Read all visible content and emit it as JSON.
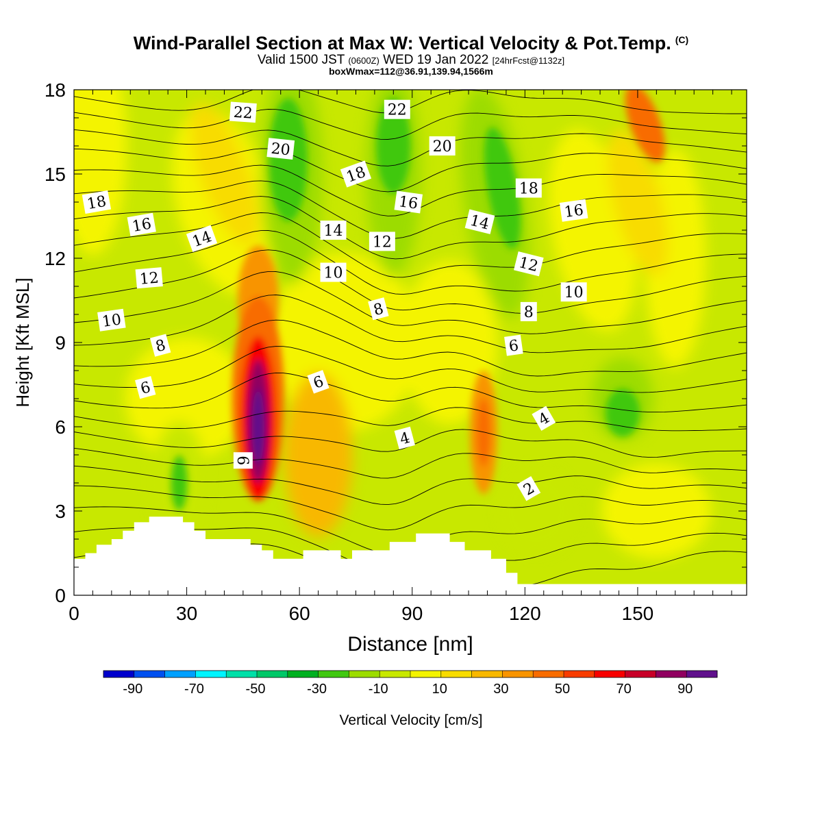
{
  "title": "Wind-Parallel Section at Max W: Vertical Velocity & Pot.Temp.",
  "copyright": "(C)",
  "subtitle_main": "Valid 1500 JST",
  "subtitle_utc": "(0600Z)",
  "subtitle_date": "WED 19 Jan 2022",
  "subtitle_fcst": "[24hrFcst@1132z]",
  "box_info": "boxWmax=112@36.91,139.94,1566m",
  "chart_data": {
    "type": "heatmap",
    "xlabel": "Distance [nm]",
    "ylabel": "Height [Kft MSL]",
    "xlim": [
      0,
      179
    ],
    "ylim": [
      0,
      18
    ],
    "x_ticks": [
      0,
      30,
      60,
      90,
      120,
      150
    ],
    "y_ticks": [
      0,
      3,
      6,
      9,
      12,
      15,
      18
    ],
    "colorbar": {
      "label": "Vertical Velocity [cm/s]",
      "bounds": [
        -100,
        -90,
        -80,
        -70,
        -60,
        -50,
        -40,
        -30,
        -20,
        -10,
        0,
        10,
        20,
        30,
        40,
        50,
        60,
        70,
        80,
        90,
        100
      ],
      "tick_labels": [
        -90,
        -70,
        -50,
        -30,
        -10,
        10,
        30,
        50,
        70,
        90
      ],
      "colors": [
        "#0000cc",
        "#0050f0",
        "#00a0ff",
        "#00f5ff",
        "#00e0a8",
        "#00c868",
        "#00b020",
        "#40c810",
        "#9cdc00",
        "#c8e800",
        "#f4f400",
        "#f8dc00",
        "#f8b800",
        "#f89400",
        "#f86c00",
        "#f83c00",
        "#f80000",
        "#c80028",
        "#900060",
        "#60108c"
      ]
    },
    "terrain": [
      [
        0,
        1.3
      ],
      [
        3,
        1.3
      ],
      [
        3,
        1.5
      ],
      [
        6,
        1.5
      ],
      [
        6,
        1.8
      ],
      [
        10,
        1.8
      ],
      [
        10,
        2.0
      ],
      [
        13,
        2.0
      ],
      [
        13,
        2.3
      ],
      [
        16,
        2.3
      ],
      [
        16,
        2.6
      ],
      [
        20,
        2.6
      ],
      [
        20,
        2.8
      ],
      [
        29,
        2.8
      ],
      [
        29,
        2.6
      ],
      [
        32,
        2.6
      ],
      [
        32,
        2.3
      ],
      [
        35,
        2.3
      ],
      [
        35,
        2.0
      ],
      [
        47,
        2.0
      ],
      [
        47,
        1.8
      ],
      [
        50,
        1.8
      ],
      [
        50,
        1.6
      ],
      [
        53,
        1.6
      ],
      [
        53,
        1.3
      ],
      [
        61,
        1.3
      ],
      [
        61,
        1.6
      ],
      [
        71,
        1.6
      ],
      [
        71,
        1.3
      ],
      [
        74,
        1.3
      ],
      [
        74,
        1.6
      ],
      [
        84,
        1.6
      ],
      [
        84,
        1.9
      ],
      [
        91,
        1.9
      ],
      [
        91,
        2.2
      ],
      [
        100,
        2.2
      ],
      [
        100,
        1.9
      ],
      [
        104,
        1.9
      ],
      [
        104,
        1.6
      ],
      [
        111,
        1.6
      ],
      [
        111,
        1.3
      ],
      [
        115,
        1.3
      ],
      [
        115,
        0.8
      ],
      [
        118,
        0.8
      ],
      [
        118,
        0.4
      ],
      [
        179,
        0.4
      ]
    ],
    "velocity_features": [
      {
        "label": "main updraft",
        "x": 49,
        "y": 6.0,
        "peak_cm_s": 112
      },
      {
        "label": "upper-left updraft",
        "x": 48,
        "y": 11,
        "peak_cm_s": 35
      },
      {
        "label": "secondary updraft",
        "x": 109,
        "y": 5.8,
        "peak_cm_s": 45
      },
      {
        "label": "upper-right updraft",
        "x": 152,
        "y": 16.5,
        "peak_cm_s": 45
      },
      {
        "label": "downdraft column",
        "x": 57,
        "y": 15.5,
        "peak_cm_s": -25
      },
      {
        "label": "downdraft column",
        "x": 85,
        "y": 15.5,
        "peak_cm_s": -25
      },
      {
        "label": "downdraft column",
        "x": 115,
        "y": 14.5,
        "peak_cm_s": -20
      },
      {
        "label": "downdraft near 145",
        "x": 146,
        "y": 7.0,
        "peak_cm_s": -20
      }
    ],
    "pot_temp_contours": {
      "levels": [
        1,
        2,
        3,
        4,
        5,
        6,
        7,
        8,
        9,
        10,
        11,
        12,
        13,
        14,
        15,
        16,
        17,
        18,
        19,
        20,
        21,
        22,
        23
      ],
      "labels": [
        {
          "text": "22",
          "x": 45,
          "y": 17.2,
          "rot": 4
        },
        {
          "text": "22",
          "x": 86,
          "y": 17.3,
          "rot": 0
        },
        {
          "text": "20",
          "x": 55,
          "y": 15.9,
          "rot": 6
        },
        {
          "text": "20",
          "x": 98,
          "y": 16.0,
          "rot": 0
        },
        {
          "text": "18",
          "x": 75,
          "y": 15.0,
          "rot": -20
        },
        {
          "text": "18",
          "x": 121,
          "y": 14.5,
          "rot": 0
        },
        {
          "text": "18",
          "x": 6,
          "y": 14.0,
          "rot": -10
        },
        {
          "text": "16",
          "x": 18,
          "y": 13.2,
          "rot": -10
        },
        {
          "text": "16",
          "x": 89,
          "y": 14.0,
          "rot": 8
        },
        {
          "text": "16",
          "x": 133,
          "y": 13.7,
          "rot": -8
        },
        {
          "text": "14",
          "x": 34,
          "y": 12.7,
          "rot": -20
        },
        {
          "text": "14",
          "x": 69,
          "y": 13.0,
          "rot": 0
        },
        {
          "text": "14",
          "x": 108,
          "y": 13.3,
          "rot": 14
        },
        {
          "text": "12",
          "x": 82,
          "y": 12.6,
          "rot": 0
        },
        {
          "text": "12",
          "x": 121,
          "y": 11.8,
          "rot": 14
        },
        {
          "text": "12",
          "x": 20,
          "y": 11.3,
          "rot": -5
        },
        {
          "text": "10",
          "x": 69,
          "y": 11.5,
          "rot": 0
        },
        {
          "text": "10",
          "x": 133,
          "y": 10.8,
          "rot": 0
        },
        {
          "text": "10",
          "x": 10,
          "y": 9.8,
          "rot": -8
        },
        {
          "text": "8",
          "x": 81,
          "y": 10.2,
          "rot": -15
        },
        {
          "text": "8",
          "x": 121,
          "y": 10.1,
          "rot": 0
        },
        {
          "text": "8",
          "x": 23,
          "y": 8.9,
          "rot": -15
        },
        {
          "text": "6",
          "x": 117,
          "y": 8.9,
          "rot": -8
        },
        {
          "text": "6",
          "x": 65,
          "y": 7.6,
          "rot": -20
        },
        {
          "text": "6",
          "x": 19,
          "y": 7.4,
          "rot": -15
        },
        {
          "text": "4",
          "x": 125,
          "y": 6.3,
          "rot": -30
        },
        {
          "text": "4",
          "x": 88,
          "y": 5.6,
          "rot": -15
        },
        {
          "text": "6",
          "x": 45,
          "y": 4.8,
          "rot": 90
        },
        {
          "text": "2",
          "x": 121,
          "y": 3.8,
          "rot": -30
        }
      ]
    }
  }
}
